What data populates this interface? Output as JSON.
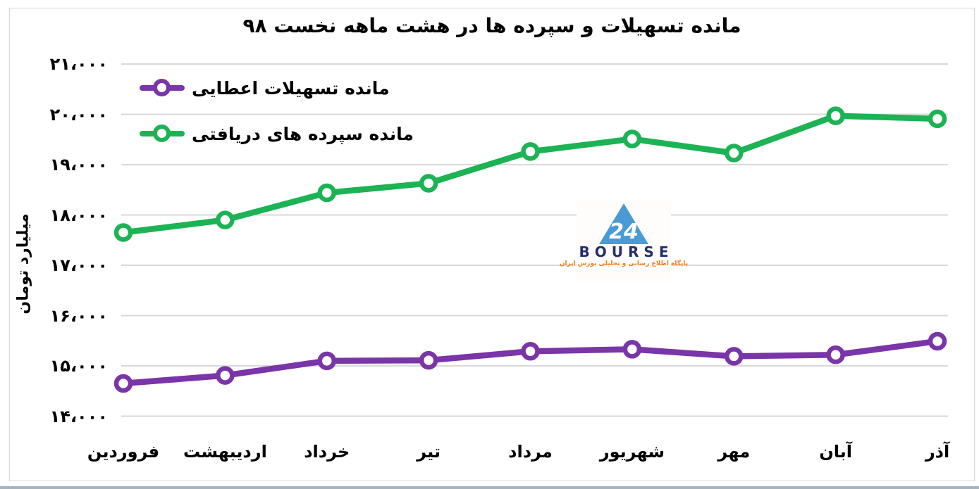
{
  "chart_data": {
    "type": "line",
    "title": "مانده تسهیلات و سپرده ها در هشت ماهه نخست ۹۸",
    "ylabel": "میلیارد تومان",
    "xlabel": "",
    "categories": [
      "فروردین",
      "اردیبهشت",
      "خرداد",
      "تیر",
      "مرداد",
      "شهریور",
      "مهر",
      "آبان",
      "آذر"
    ],
    "series": [
      {
        "name": "مانده تسهیلات اعطایی",
        "color": "#7a35a8",
        "values": [
          14650,
          14810,
          15100,
          15110,
          15290,
          15330,
          15190,
          15220,
          15490
        ]
      },
      {
        "name": "مانده سپرده های دریافتی",
        "color": "#1cb355",
        "values": [
          17650,
          17900,
          18440,
          18630,
          19260,
          19510,
          19230,
          19970,
          19910
        ]
      }
    ],
    "ylim": [
      14000,
      21000
    ],
    "ytick_step": 1000,
    "ytick_labels": [
      "۱۴،۰۰۰",
      "۱۵،۰۰۰",
      "۱۶،۰۰۰",
      "۱۷،۰۰۰",
      "۱۸،۰۰۰",
      "۱۹،۰۰۰",
      "۲۰،۰۰۰",
      "۲۱،۰۰۰"
    ],
    "grid": "horizontal",
    "gridline_color": "#d9d9d9",
    "legend_position": "top-left",
    "marker": "open-circle"
  },
  "watermark": {
    "brand": "BOURSE",
    "logo_text": "24",
    "tagline": "پایگاه اطلاع رسانی و تحلیلی بورس ایران",
    "logo_color": "#4a9bd5",
    "brand_color": "#23306b",
    "tagline_color": "#ef7f1f"
  },
  "colors": {
    "background": "#ffffff",
    "text": "#000000",
    "frame_border": "#d8d8d8",
    "bottom_edge": "#a7b3bd"
  }
}
